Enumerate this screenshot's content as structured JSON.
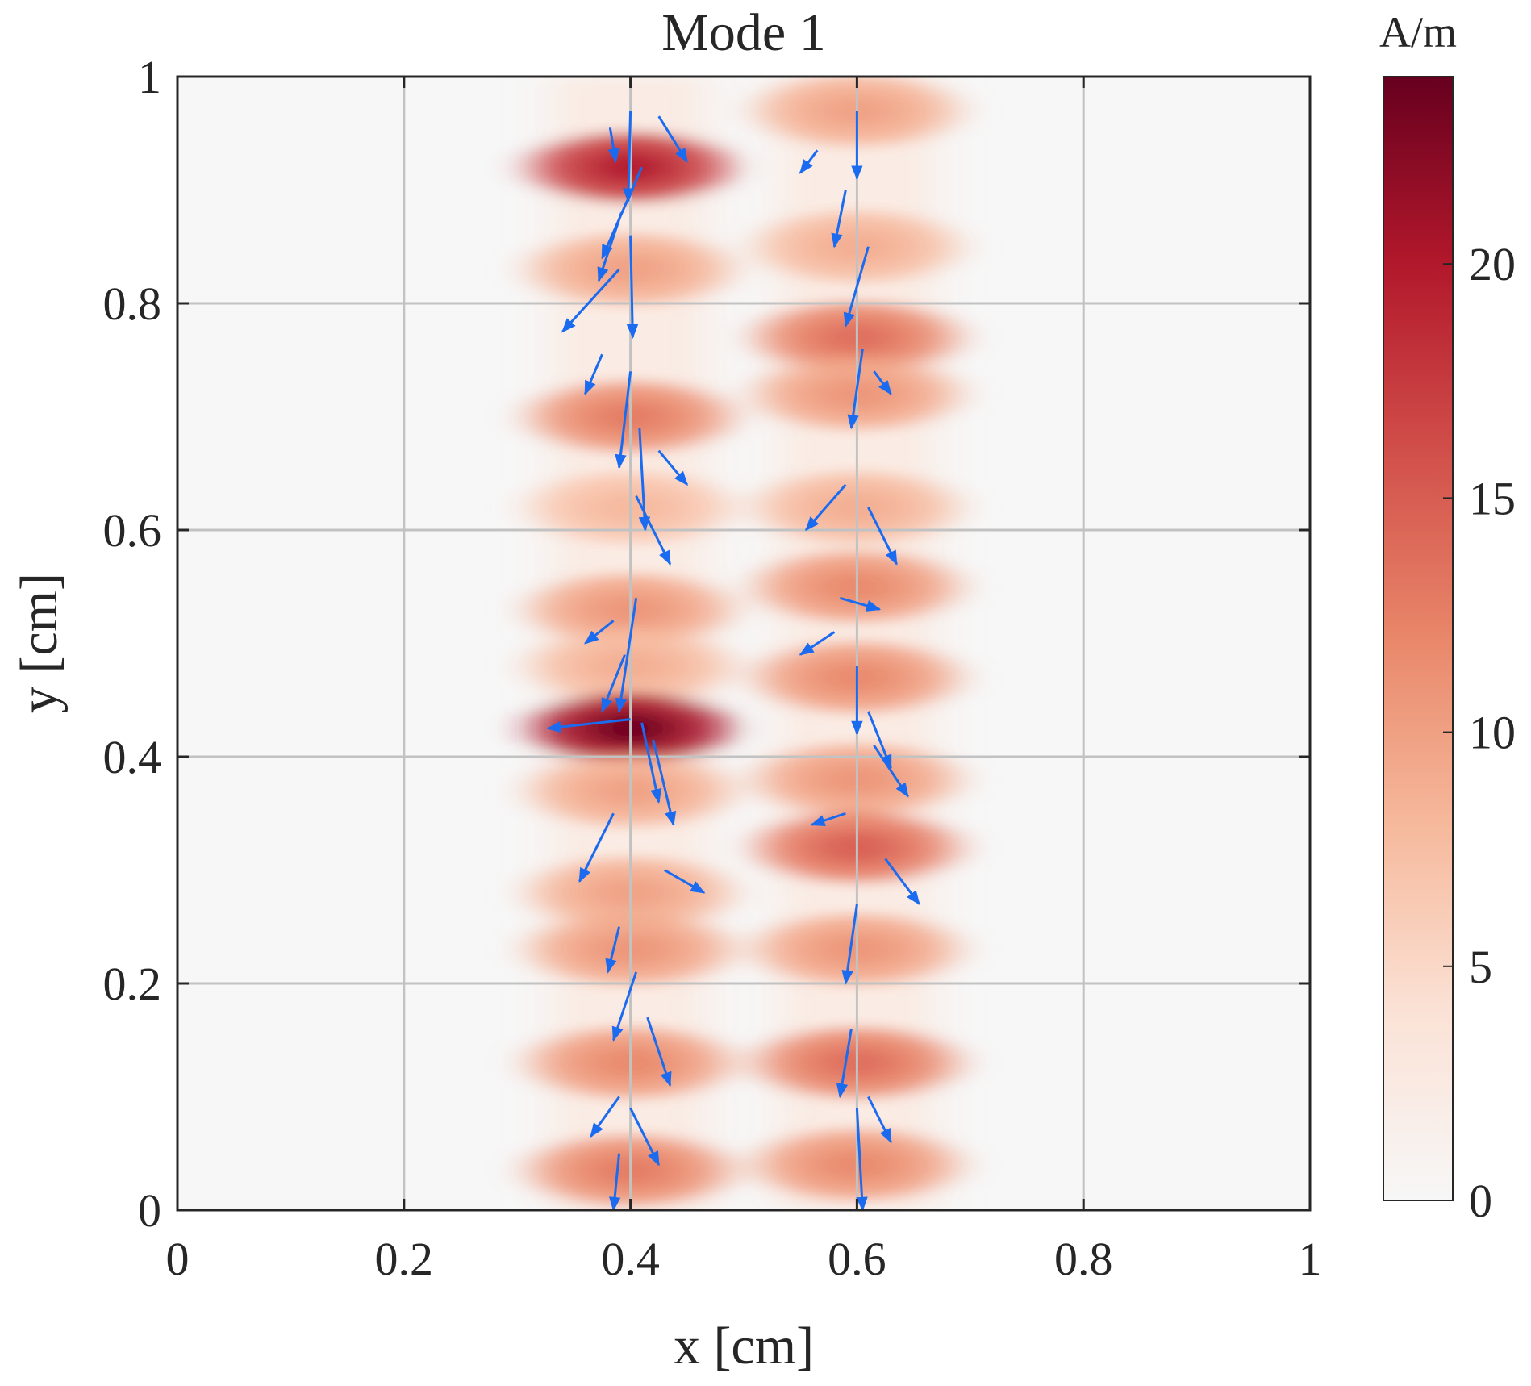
{
  "chart_data": {
    "type": "heatmap",
    "title": "Mode 1",
    "xlabel": "x [cm]",
    "ylabel": "y [cm]",
    "xlim": [
      0,
      1
    ],
    "ylim": [
      0,
      1
    ],
    "grid": true,
    "xticks": [
      {
        "value": 0,
        "label": "0"
      },
      {
        "value": 0.2,
        "label": "0.2"
      },
      {
        "value": 0.4,
        "label": "0.4"
      },
      {
        "value": 0.6,
        "label": "0.6"
      },
      {
        "value": 0.8,
        "label": "0.8"
      },
      {
        "value": 1,
        "label": "1"
      }
    ],
    "yticks": [
      {
        "value": 0,
        "label": "0"
      },
      {
        "value": 0.2,
        "label": "0.2"
      },
      {
        "value": 0.4,
        "label": "0.4"
      },
      {
        "value": 0.6,
        "label": "0.6"
      },
      {
        "value": 0.8,
        "label": "0.8"
      },
      {
        "value": 1,
        "label": "1"
      }
    ],
    "colorbar": {
      "label": "A/m",
      "range": [
        0,
        24
      ],
      "ticks": [
        {
          "value": 0,
          "label": "0"
        },
        {
          "value": 5,
          "label": "5"
        },
        {
          "value": 10,
          "label": "10"
        },
        {
          "value": 15,
          "label": "15"
        },
        {
          "value": 20,
          "label": "20"
        }
      ],
      "colormap": [
        "#f7f7f7",
        "#fbe2d6",
        "#f6b99c",
        "#e9876a",
        "#d14f4a",
        "#b2182b",
        "#67001f"
      ]
    },
    "strips": [
      {
        "x_center": 0.4,
        "spots": [
          {
            "y": 0.92,
            "value": 20
          },
          {
            "y": 0.83,
            "value": 10
          },
          {
            "y": 0.7,
            "value": 13
          },
          {
            "y": 0.62,
            "value": 8
          },
          {
            "y": 0.53,
            "value": 11
          },
          {
            "y": 0.48,
            "value": 9
          },
          {
            "y": 0.425,
            "value": 24
          },
          {
            "y": 0.37,
            "value": 10
          },
          {
            "y": 0.28,
            "value": 10
          },
          {
            "y": 0.23,
            "value": 11
          },
          {
            "y": 0.13,
            "value": 12
          },
          {
            "y": 0.035,
            "value": 13
          }
        ]
      },
      {
        "x_center": 0.6,
        "spots": [
          {
            "y": 0.97,
            "value": 10
          },
          {
            "y": 0.85,
            "value": 9
          },
          {
            "y": 0.77,
            "value": 14
          },
          {
            "y": 0.72,
            "value": 11
          },
          {
            "y": 0.62,
            "value": 9
          },
          {
            "y": 0.55,
            "value": 12
          },
          {
            "y": 0.47,
            "value": 12
          },
          {
            "y": 0.38,
            "value": 11
          },
          {
            "y": 0.32,
            "value": 15
          },
          {
            "y": 0.23,
            "value": 11
          },
          {
            "y": 0.13,
            "value": 14
          },
          {
            "y": 0.04,
            "value": 12
          }
        ]
      }
    ],
    "quiver": {
      "color": "#1a6bf0",
      "arrows": [
        {
          "x": 0.382,
          "y": 0.955,
          "dx": 0.005,
          "dy": -0.03
        },
        {
          "x": 0.4,
          "y": 0.97,
          "dx": -0.002,
          "dy": -0.08
        },
        {
          "x": 0.425,
          "y": 0.965,
          "dx": 0.025,
          "dy": -0.04
        },
        {
          "x": 0.41,
          "y": 0.92,
          "dx": -0.035,
          "dy": -0.08
        },
        {
          "x": 0.392,
          "y": 0.88,
          "dx": -0.02,
          "dy": -0.06
        },
        {
          "x": 0.4,
          "y": 0.86,
          "dx": 0.002,
          "dy": -0.09
        },
        {
          "x": 0.39,
          "y": 0.83,
          "dx": -0.05,
          "dy": -0.055
        },
        {
          "x": 0.375,
          "y": 0.755,
          "dx": -0.015,
          "dy": -0.035
        },
        {
          "x": 0.4,
          "y": 0.74,
          "dx": -0.01,
          "dy": -0.085
        },
        {
          "x": 0.408,
          "y": 0.69,
          "dx": 0.005,
          "dy": -0.09
        },
        {
          "x": 0.425,
          "y": 0.67,
          "dx": 0.025,
          "dy": -0.03
        },
        {
          "x": 0.405,
          "y": 0.63,
          "dx": 0.03,
          "dy": -0.06
        },
        {
          "x": 0.405,
          "y": 0.54,
          "dx": -0.015,
          "dy": -0.1
        },
        {
          "x": 0.385,
          "y": 0.52,
          "dx": -0.025,
          "dy": -0.02
        },
        {
          "x": 0.395,
          "y": 0.49,
          "dx": -0.02,
          "dy": -0.05
        },
        {
          "x": 0.4,
          "y": 0.433,
          "dx": -0.073,
          "dy": -0.008
        },
        {
          "x": 0.41,
          "y": 0.43,
          "dx": 0.015,
          "dy": -0.07
        },
        {
          "x": 0.42,
          "y": 0.415,
          "dx": 0.018,
          "dy": -0.075
        },
        {
          "x": 0.385,
          "y": 0.35,
          "dx": -0.03,
          "dy": -0.06
        },
        {
          "x": 0.43,
          "y": 0.3,
          "dx": 0.035,
          "dy": -0.02
        },
        {
          "x": 0.39,
          "y": 0.25,
          "dx": -0.01,
          "dy": -0.04
        },
        {
          "x": 0.405,
          "y": 0.21,
          "dx": -0.02,
          "dy": -0.06
        },
        {
          "x": 0.415,
          "y": 0.17,
          "dx": 0.02,
          "dy": -0.06
        },
        {
          "x": 0.39,
          "y": 0.1,
          "dx": -0.025,
          "dy": -0.035
        },
        {
          "x": 0.4,
          "y": 0.09,
          "dx": 0.025,
          "dy": -0.05
        },
        {
          "x": 0.6,
          "y": 0.97,
          "dx": 0.0,
          "dy": -0.06
        },
        {
          "x": 0.565,
          "y": 0.935,
          "dx": -0.015,
          "dy": -0.02
        },
        {
          "x": 0.59,
          "y": 0.9,
          "dx": -0.01,
          "dy": -0.05
        },
        {
          "x": 0.61,
          "y": 0.85,
          "dx": -0.02,
          "dy": -0.07
        },
        {
          "x": 0.605,
          "y": 0.76,
          "dx": -0.01,
          "dy": -0.07
        },
        {
          "x": 0.615,
          "y": 0.74,
          "dx": 0.015,
          "dy": -0.02
        },
        {
          "x": 0.59,
          "y": 0.64,
          "dx": -0.035,
          "dy": -0.04
        },
        {
          "x": 0.61,
          "y": 0.62,
          "dx": 0.025,
          "dy": -0.05
        },
        {
          "x": 0.585,
          "y": 0.54,
          "dx": 0.035,
          "dy": -0.01
        },
        {
          "x": 0.58,
          "y": 0.51,
          "dx": -0.03,
          "dy": -0.02
        },
        {
          "x": 0.6,
          "y": 0.48,
          "dx": 0.0,
          "dy": -0.06
        },
        {
          "x": 0.61,
          "y": 0.44,
          "dx": 0.02,
          "dy": -0.05
        },
        {
          "x": 0.615,
          "y": 0.41,
          "dx": 0.03,
          "dy": -0.045
        },
        {
          "x": 0.59,
          "y": 0.35,
          "dx": -0.03,
          "dy": -0.01
        },
        {
          "x": 0.625,
          "y": 0.31,
          "dx": 0.03,
          "dy": -0.04
        },
        {
          "x": 0.6,
          "y": 0.27,
          "dx": -0.01,
          "dy": -0.07
        },
        {
          "x": 0.595,
          "y": 0.16,
          "dx": -0.01,
          "dy": -0.06
        },
        {
          "x": 0.61,
          "y": 0.1,
          "dx": 0.02,
          "dy": -0.04
        },
        {
          "x": 0.6,
          "y": 0.09,
          "dx": 0.005,
          "dy": -0.09
        },
        {
          "x": 0.39,
          "y": 0.05,
          "dx": -0.005,
          "dy": -0.05
        }
      ]
    }
  }
}
